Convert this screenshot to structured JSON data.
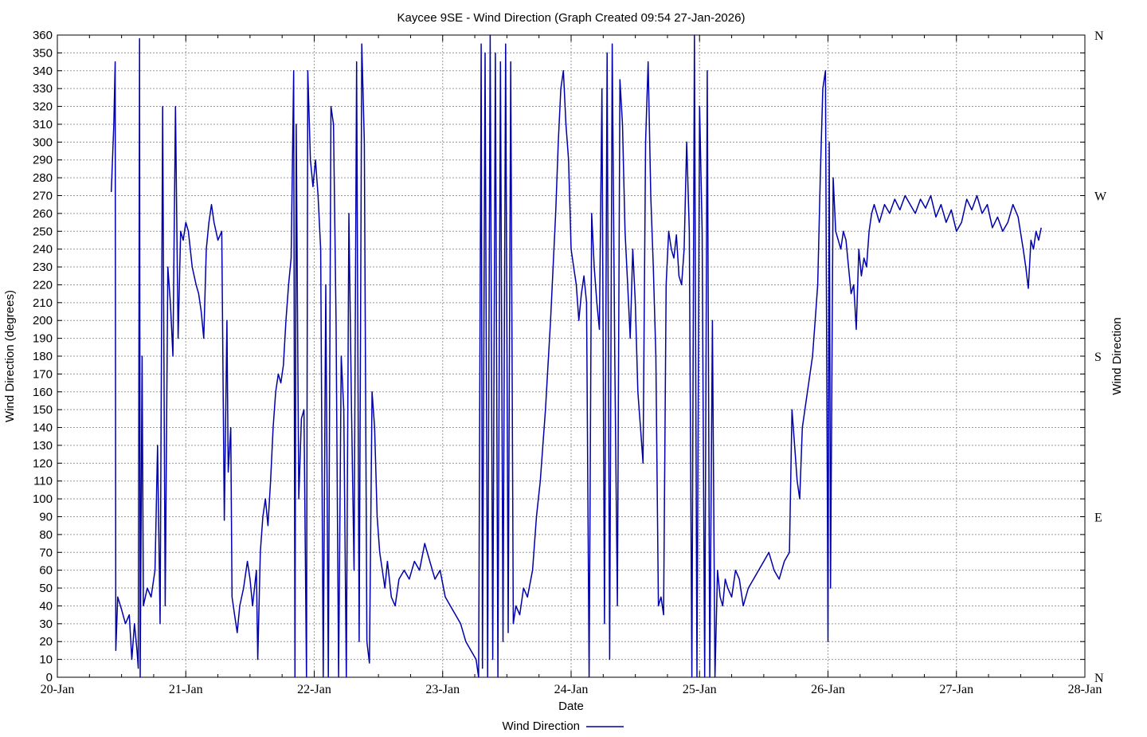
{
  "chart_data": {
    "type": "line",
    "title": "Kaycee 9SE - Wind Direction (Graph Created 09:54 27-Jan-2026)",
    "xlabel": "Date",
    "ylabel": "Wind Direction (degrees)",
    "y2label": "Wind Direction",
    "ylim": [
      0,
      360
    ],
    "ytick_step": 10,
    "x_categories": [
      "20-Jan",
      "21-Jan",
      "22-Jan",
      "23-Jan",
      "24-Jan",
      "25-Jan",
      "26-Jan",
      "27-Jan",
      "28-Jan"
    ],
    "xlim": [
      "20-Jan",
      "28-Jan"
    ],
    "compass_labels": [
      {
        "label": "N",
        "value": 360
      },
      {
        "label": "W",
        "value": 270
      },
      {
        "label": "S",
        "value": 180
      },
      {
        "label": "E",
        "value": 90
      },
      {
        "label": "N",
        "value": 0
      }
    ],
    "grid": true,
    "legend_position": "bottom-center",
    "series_color": "#0000a8",
    "series": [
      {
        "name": "Wind Direction",
        "x_unit": "days since 20-Jan",
        "points": [
          [
            0.42,
            272
          ],
          [
            0.44,
            310
          ],
          [
            0.45,
            345
          ],
          [
            0.455,
            15
          ],
          [
            0.47,
            45
          ],
          [
            0.5,
            38
          ],
          [
            0.53,
            30
          ],
          [
            0.56,
            35
          ],
          [
            0.58,
            10
          ],
          [
            0.6,
            30
          ],
          [
            0.62,
            15
          ],
          [
            0.63,
            5
          ],
          [
            0.64,
            358
          ],
          [
            0.645,
            0
          ],
          [
            0.66,
            180
          ],
          [
            0.67,
            40
          ],
          [
            0.7,
            50
          ],
          [
            0.73,
            45
          ],
          [
            0.76,
            60
          ],
          [
            0.78,
            130
          ],
          [
            0.8,
            30
          ],
          [
            0.82,
            320
          ],
          [
            0.84,
            40
          ],
          [
            0.86,
            230
          ],
          [
            0.88,
            210
          ],
          [
            0.9,
            180
          ],
          [
            0.92,
            320
          ],
          [
            0.94,
            190
          ],
          [
            0.96,
            250
          ],
          [
            0.98,
            245
          ],
          [
            1.0,
            255
          ],
          [
            1.02,
            250
          ],
          [
            1.05,
            230
          ],
          [
            1.08,
            220
          ],
          [
            1.1,
            215
          ],
          [
            1.12,
            205
          ],
          [
            1.14,
            190
          ],
          [
            1.16,
            240
          ],
          [
            1.18,
            255
          ],
          [
            1.2,
            265
          ],
          [
            1.22,
            255
          ],
          [
            1.25,
            245
          ],
          [
            1.28,
            250
          ],
          [
            1.3,
            88
          ],
          [
            1.32,
            200
          ],
          [
            1.33,
            115
          ],
          [
            1.35,
            140
          ],
          [
            1.36,
            45
          ],
          [
            1.38,
            35
          ],
          [
            1.4,
            25
          ],
          [
            1.42,
            40
          ],
          [
            1.45,
            50
          ],
          [
            1.48,
            65
          ],
          [
            1.5,
            55
          ],
          [
            1.52,
            40
          ],
          [
            1.55,
            60
          ],
          [
            1.56,
            10
          ],
          [
            1.58,
            70
          ],
          [
            1.6,
            90
          ],
          [
            1.62,
            100
          ],
          [
            1.64,
            85
          ],
          [
            1.66,
            110
          ],
          [
            1.68,
            140
          ],
          [
            1.7,
            160
          ],
          [
            1.72,
            170
          ],
          [
            1.74,
            165
          ],
          [
            1.76,
            175
          ],
          [
            1.78,
            200
          ],
          [
            1.8,
            220
          ],
          [
            1.82,
            235
          ],
          [
            1.84,
            340
          ],
          [
            1.85,
            0
          ],
          [
            1.86,
            310
          ],
          [
            1.88,
            100
          ],
          [
            1.9,
            145
          ],
          [
            1.92,
            150
          ],
          [
            1.94,
            0
          ],
          [
            1.95,
            340
          ],
          [
            1.97,
            290
          ],
          [
            1.99,
            275
          ],
          [
            2.01,
            290
          ],
          [
            2.03,
            270
          ],
          [
            2.05,
            240
          ],
          [
            2.07,
            0
          ],
          [
            2.09,
            220
          ],
          [
            2.11,
            0
          ],
          [
            2.13,
            320
          ],
          [
            2.15,
            310
          ],
          [
            2.17,
            200
          ],
          [
            2.19,
            0
          ],
          [
            2.21,
            180
          ],
          [
            2.23,
            150
          ],
          [
            2.25,
            0
          ],
          [
            2.27,
            260
          ],
          [
            2.29,
            150
          ],
          [
            2.31,
            60
          ],
          [
            2.33,
            345
          ],
          [
            2.35,
            20
          ],
          [
            2.37,
            355
          ],
          [
            2.39,
            300
          ],
          [
            2.41,
            20
          ],
          [
            2.43,
            8
          ],
          [
            2.45,
            160
          ],
          [
            2.47,
            140
          ],
          [
            2.49,
            90
          ],
          [
            2.51,
            70
          ],
          [
            2.53,
            60
          ],
          [
            2.55,
            50
          ],
          [
            2.57,
            65
          ],
          [
            2.6,
            45
          ],
          [
            2.63,
            40
          ],
          [
            2.66,
            55
          ],
          [
            2.7,
            60
          ],
          [
            2.74,
            55
          ],
          [
            2.78,
            65
          ],
          [
            2.82,
            60
          ],
          [
            2.86,
            75
          ],
          [
            2.9,
            65
          ],
          [
            2.94,
            55
          ],
          [
            2.98,
            60
          ],
          [
            3.02,
            45
          ],
          [
            3.06,
            40
          ],
          [
            3.1,
            35
          ],
          [
            3.14,
            30
          ],
          [
            3.18,
            20
          ],
          [
            3.22,
            15
          ],
          [
            3.26,
            10
          ],
          [
            3.28,
            0
          ],
          [
            3.3,
            355
          ],
          [
            3.31,
            5
          ],
          [
            3.33,
            350
          ],
          [
            3.35,
            0
          ],
          [
            3.37,
            360
          ],
          [
            3.39,
            10
          ],
          [
            3.41,
            350
          ],
          [
            3.43,
            0
          ],
          [
            3.45,
            345
          ],
          [
            3.47,
            20
          ],
          [
            3.49,
            355
          ],
          [
            3.51,
            25
          ],
          [
            3.53,
            345
          ],
          [
            3.55,
            30
          ],
          [
            3.57,
            40
          ],
          [
            3.6,
            35
          ],
          [
            3.63,
            50
          ],
          [
            3.66,
            45
          ],
          [
            3.7,
            60
          ],
          [
            3.73,
            90
          ],
          [
            3.76,
            110
          ],
          [
            3.8,
            150
          ],
          [
            3.84,
            200
          ],
          [
            3.88,
            260
          ],
          [
            3.9,
            300
          ],
          [
            3.92,
            330
          ],
          [
            3.94,
            340
          ],
          [
            3.96,
            310
          ],
          [
            3.98,
            290
          ],
          [
            4.0,
            240
          ],
          [
            4.02,
            230
          ],
          [
            4.04,
            220
          ],
          [
            4.06,
            200
          ],
          [
            4.08,
            215
          ],
          [
            4.1,
            225
          ],
          [
            4.12,
            210
          ],
          [
            4.14,
            0
          ],
          [
            4.16,
            260
          ],
          [
            4.18,
            230
          ],
          [
            4.2,
            210
          ],
          [
            4.22,
            195
          ],
          [
            4.24,
            330
          ],
          [
            4.26,
            30
          ],
          [
            4.28,
            350
          ],
          [
            4.3,
            10
          ],
          [
            4.32,
            355
          ],
          [
            4.34,
            180
          ],
          [
            4.36,
            40
          ],
          [
            4.38,
            335
          ],
          [
            4.4,
            310
          ],
          [
            4.42,
            250
          ],
          [
            4.44,
            220
          ],
          [
            4.46,
            190
          ],
          [
            4.48,
            240
          ],
          [
            4.5,
            210
          ],
          [
            4.52,
            160
          ],
          [
            4.54,
            140
          ],
          [
            4.56,
            120
          ],
          [
            4.58,
            300
          ],
          [
            4.6,
            345
          ],
          [
            4.62,
            270
          ],
          [
            4.64,
            230
          ],
          [
            4.66,
            180
          ],
          [
            4.68,
            40
          ],
          [
            4.7,
            45
          ],
          [
            4.72,
            35
          ],
          [
            4.74,
            220
          ],
          [
            4.76,
            250
          ],
          [
            4.78,
            240
          ],
          [
            4.8,
            235
          ],
          [
            4.82,
            248
          ],
          [
            4.84,
            225
          ],
          [
            4.86,
            220
          ],
          [
            4.88,
            240
          ],
          [
            4.9,
            300
          ],
          [
            4.92,
            250
          ],
          [
            4.94,
            0
          ],
          [
            4.96,
            360
          ],
          [
            4.98,
            0
          ],
          [
            5.0,
            320
          ],
          [
            5.02,
            250
          ],
          [
            5.04,
            0
          ],
          [
            5.06,
            340
          ],
          [
            5.08,
            0
          ],
          [
            5.1,
            200
          ],
          [
            5.12,
            0
          ],
          [
            5.14,
            60
          ],
          [
            5.16,
            45
          ],
          [
            5.18,
            40
          ],
          [
            5.2,
            55
          ],
          [
            5.22,
            50
          ],
          [
            5.25,
            45
          ],
          [
            5.28,
            60
          ],
          [
            5.31,
            55
          ],
          [
            5.34,
            40
          ],
          [
            5.38,
            50
          ],
          [
            5.42,
            55
          ],
          [
            5.46,
            60
          ],
          [
            5.5,
            65
          ],
          [
            5.54,
            70
          ],
          [
            5.58,
            60
          ],
          [
            5.62,
            55
          ],
          [
            5.66,
            65
          ],
          [
            5.7,
            70
          ],
          [
            5.72,
            150
          ],
          [
            5.74,
            130
          ],
          [
            5.76,
            110
          ],
          [
            5.78,
            100
          ],
          [
            5.8,
            140
          ],
          [
            5.82,
            150
          ],
          [
            5.84,
            160
          ],
          [
            5.86,
            170
          ],
          [
            5.88,
            180
          ],
          [
            5.9,
            200
          ],
          [
            5.92,
            220
          ],
          [
            5.94,
            280
          ],
          [
            5.96,
            330
          ],
          [
            5.98,
            340
          ],
          [
            6.0,
            20
          ],
          [
            6.01,
            300
          ],
          [
            6.02,
            50
          ],
          [
            6.04,
            280
          ],
          [
            6.06,
            250
          ],
          [
            6.08,
            245
          ],
          [
            6.1,
            240
          ],
          [
            6.12,
            250
          ],
          [
            6.14,
            245
          ],
          [
            6.16,
            230
          ],
          [
            6.18,
            215
          ],
          [
            6.2,
            220
          ],
          [
            6.22,
            195
          ],
          [
            6.24,
            240
          ],
          [
            6.26,
            225
          ],
          [
            6.28,
            235
          ],
          [
            6.3,
            230
          ],
          [
            6.32,
            250
          ],
          [
            6.34,
            260
          ],
          [
            6.36,
            265
          ],
          [
            6.4,
            255
          ],
          [
            6.44,
            265
          ],
          [
            6.48,
            260
          ],
          [
            6.52,
            268
          ],
          [
            6.56,
            262
          ],
          [
            6.6,
            270
          ],
          [
            6.64,
            265
          ],
          [
            6.68,
            260
          ],
          [
            6.72,
            268
          ],
          [
            6.76,
            263
          ],
          [
            6.8,
            270
          ],
          [
            6.84,
            258
          ],
          [
            6.88,
            265
          ],
          [
            6.92,
            255
          ],
          [
            6.96,
            262
          ],
          [
            7.0,
            250
          ],
          [
            7.04,
            255
          ],
          [
            7.08,
            268
          ],
          [
            7.12,
            262
          ],
          [
            7.16,
            270
          ],
          [
            7.2,
            260
          ],
          [
            7.24,
            265
          ],
          [
            7.28,
            252
          ],
          [
            7.32,
            258
          ],
          [
            7.36,
            250
          ],
          [
            7.4,
            255
          ],
          [
            7.44,
            265
          ],
          [
            7.48,
            258
          ],
          [
            7.52,
            240
          ],
          [
            7.54,
            230
          ],
          [
            7.56,
            218
          ],
          [
            7.58,
            245
          ],
          [
            7.6,
            240
          ],
          [
            7.62,
            250
          ],
          [
            7.64,
            245
          ],
          [
            7.66,
            252
          ]
        ]
      }
    ]
  }
}
